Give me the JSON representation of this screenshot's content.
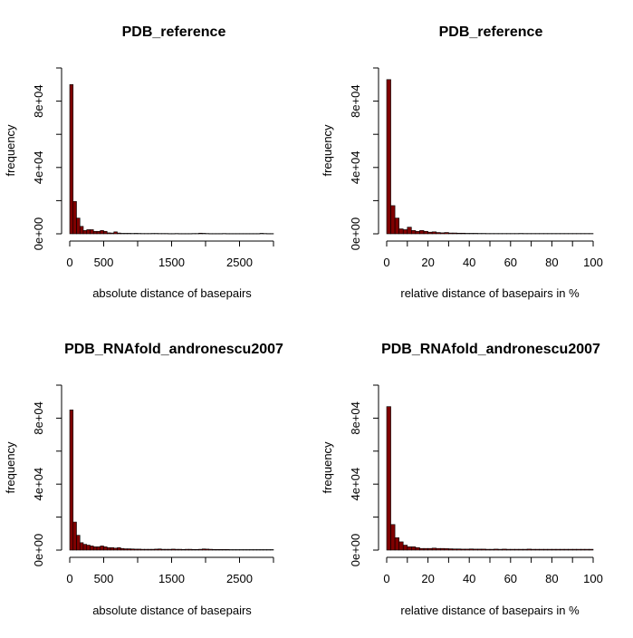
{
  "chart_data": [
    {
      "type": "bar",
      "title": "PDB_reference",
      "xlabel": "absolute distance of basepairs",
      "ylabel": "frequency",
      "xlim": [
        0,
        3000
      ],
      "ylim": [
        0,
        100000
      ],
      "x_ticks": [
        0,
        500,
        1500,
        2500
      ],
      "x_tick_labels": [
        "0",
        "500",
        "1500",
        "2500"
      ],
      "y_ticks": [
        0,
        40000,
        80000
      ],
      "y_tick_labels": [
        "0e+00",
        "4e+04",
        "8e+04"
      ],
      "bin_width": 50,
      "values": [
        90000,
        19500,
        9500,
        4500,
        2000,
        2500,
        2500,
        1500,
        1500,
        2000,
        1500,
        600,
        500,
        1200,
        500,
        300,
        300,
        300,
        250,
        300,
        250,
        200,
        200,
        200,
        250,
        250,
        200,
        200,
        200,
        150,
        150,
        200,
        150,
        150,
        150,
        150,
        200,
        200,
        400,
        300,
        200,
        150,
        150,
        150,
        150,
        200,
        150,
        150,
        150,
        150,
        150,
        150,
        150,
        150,
        150,
        150,
        300,
        200,
        150,
        150
      ],
      "bar_color": "#800000",
      "grid": false,
      "legend": "none"
    },
    {
      "type": "bar",
      "title": "PDB_reference",
      "xlabel": "relative distance of basepairs in %",
      "ylabel": "frequency",
      "xlim": [
        0,
        100
      ],
      "ylim": [
        0,
        100000
      ],
      "x_ticks": [
        0,
        20,
        40,
        60,
        80,
        100
      ],
      "x_tick_labels": [
        "0",
        "20",
        "40",
        "60",
        "80",
        "100"
      ],
      "y_ticks": [
        0,
        40000,
        80000
      ],
      "y_tick_labels": [
        "0e+00",
        "4e+04",
        "8e+04"
      ],
      "bin_width": 2,
      "values": [
        93000,
        17000,
        9500,
        3000,
        2500,
        4000,
        2000,
        1500,
        2000,
        1500,
        1000,
        1200,
        800,
        600,
        800,
        500,
        500,
        400,
        400,
        300,
        300,
        300,
        250,
        250,
        200,
        200,
        200,
        200,
        200,
        200,
        200,
        200,
        250,
        200,
        200,
        200,
        200,
        200,
        200,
        200,
        200,
        200,
        200,
        200,
        200,
        200,
        200,
        200,
        200,
        200
      ],
      "bar_color": "#800000",
      "grid": false,
      "legend": "none"
    },
    {
      "type": "bar",
      "title": "PDB_RNAfold_andronescu2007",
      "xlabel": "absolute distance of basepairs",
      "ylabel": "frequency",
      "xlim": [
        0,
        3000
      ],
      "ylim": [
        0,
        100000
      ],
      "x_ticks": [
        0,
        500,
        1500,
        2500
      ],
      "x_tick_labels": [
        "0",
        "500",
        "1500",
        "2500"
      ],
      "y_ticks": [
        0,
        40000,
        80000
      ],
      "y_tick_labels": [
        "0e+00",
        "4e+04",
        "8e+04"
      ],
      "bin_width": 50,
      "values": [
        85000,
        17000,
        9000,
        4500,
        3500,
        3000,
        2500,
        2000,
        2000,
        2500,
        2000,
        1500,
        1500,
        1200,
        1500,
        1000,
        800,
        800,
        700,
        600,
        600,
        500,
        500,
        500,
        500,
        600,
        700,
        500,
        500,
        500,
        600,
        500,
        500,
        400,
        500,
        500,
        400,
        400,
        500,
        700,
        600,
        500,
        400,
        400,
        400,
        400,
        400,
        300,
        300,
        300,
        300,
        300,
        300,
        300,
        300,
        300,
        300,
        300,
        300,
        300
      ],
      "bar_color": "#800000",
      "grid": false,
      "legend": "none"
    },
    {
      "type": "bar",
      "title": "PDB_RNAfold_andronescu2007",
      "xlabel": "relative distance of basepairs in %",
      "ylabel": "frequency",
      "xlim": [
        0,
        100
      ],
      "ylim": [
        0,
        100000
      ],
      "x_ticks": [
        0,
        20,
        40,
        60,
        80,
        100
      ],
      "x_tick_labels": [
        "0",
        "20",
        "40",
        "60",
        "80",
        "100"
      ],
      "y_ticks": [
        0,
        40000,
        80000
      ],
      "y_tick_labels": [
        "0e+00",
        "4e+04",
        "8e+04"
      ],
      "bin_width": 2,
      "values": [
        87000,
        15500,
        7500,
        5000,
        3000,
        2000,
        2000,
        1500,
        1000,
        1000,
        1000,
        1200,
        1000,
        1000,
        900,
        800,
        700,
        700,
        600,
        600,
        700,
        600,
        600,
        600,
        500,
        500,
        600,
        500,
        600,
        500,
        500,
        500,
        500,
        500,
        600,
        500,
        500,
        500,
        500,
        500,
        500,
        500,
        500,
        500,
        500,
        500,
        500,
        500,
        500,
        500
      ],
      "bar_color": "#800000",
      "grid": false,
      "legend": "none"
    }
  ]
}
